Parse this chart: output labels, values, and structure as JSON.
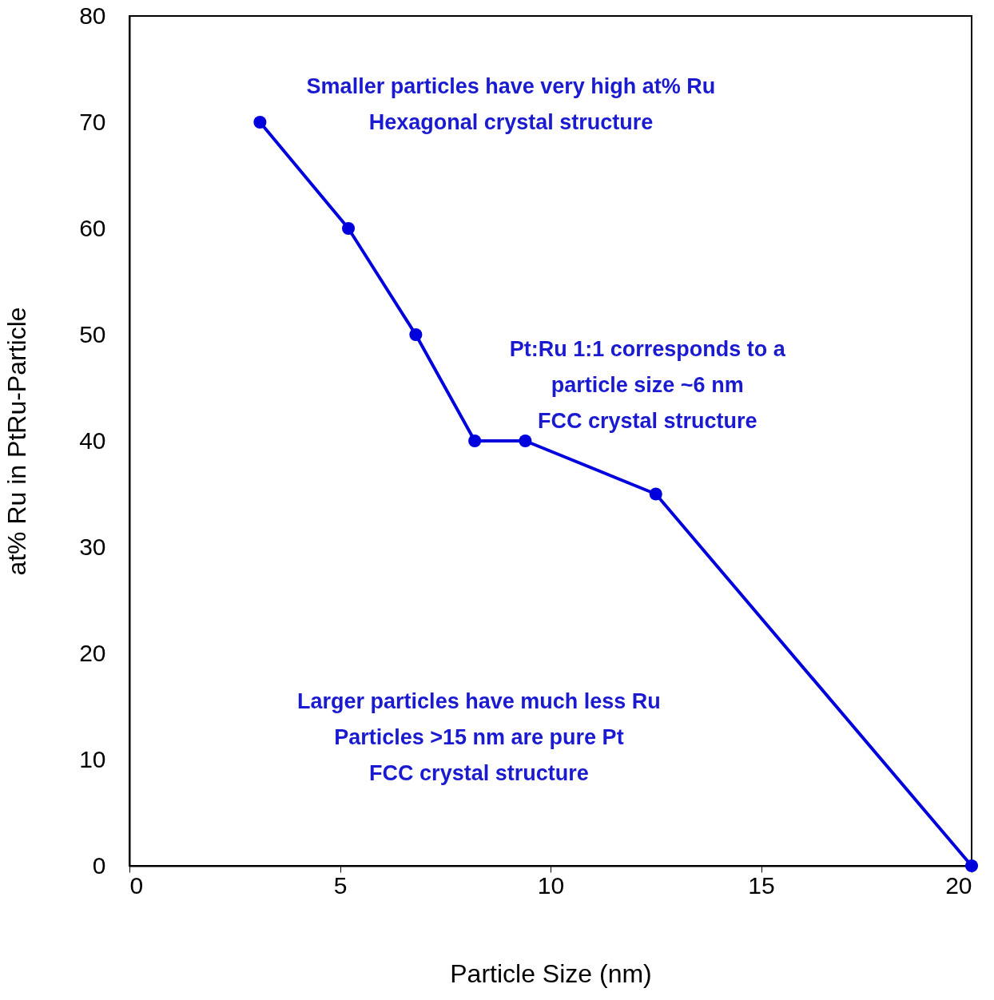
{
  "chart_data": {
    "type": "line",
    "xlabel": "Particle Size (nm)",
    "ylabel": "at% Ru in PtRu-Particle",
    "x": [
      3.1,
      5.2,
      6.8,
      8.2,
      9.4,
      12.5,
      20
    ],
    "series": [
      {
        "color": "#0000dd",
        "values": [
          70,
          60,
          50,
          40,
          40,
          35,
          0
        ]
      }
    ],
    "xlim": [
      0,
      20
    ],
    "xticks": [
      0,
      5,
      10,
      15,
      20
    ],
    "ylim": [
      0,
      80
    ],
    "yticks": [
      0,
      10,
      20,
      30,
      40,
      50,
      60,
      70,
      80
    ],
    "grid": false,
    "marker": "circle",
    "line_style": "solid",
    "annotations": [
      "Smaller particles have very high at% Ru\nHexagonal crystal structure",
      "Pt:Ru 1:1 corresponds to a\nparticle size ~6 nm\nFCC crystal structure",
      "Larger particles have much less Ru\nParticles >15 nm are pure Pt\nFCC crystal structure"
    ]
  }
}
